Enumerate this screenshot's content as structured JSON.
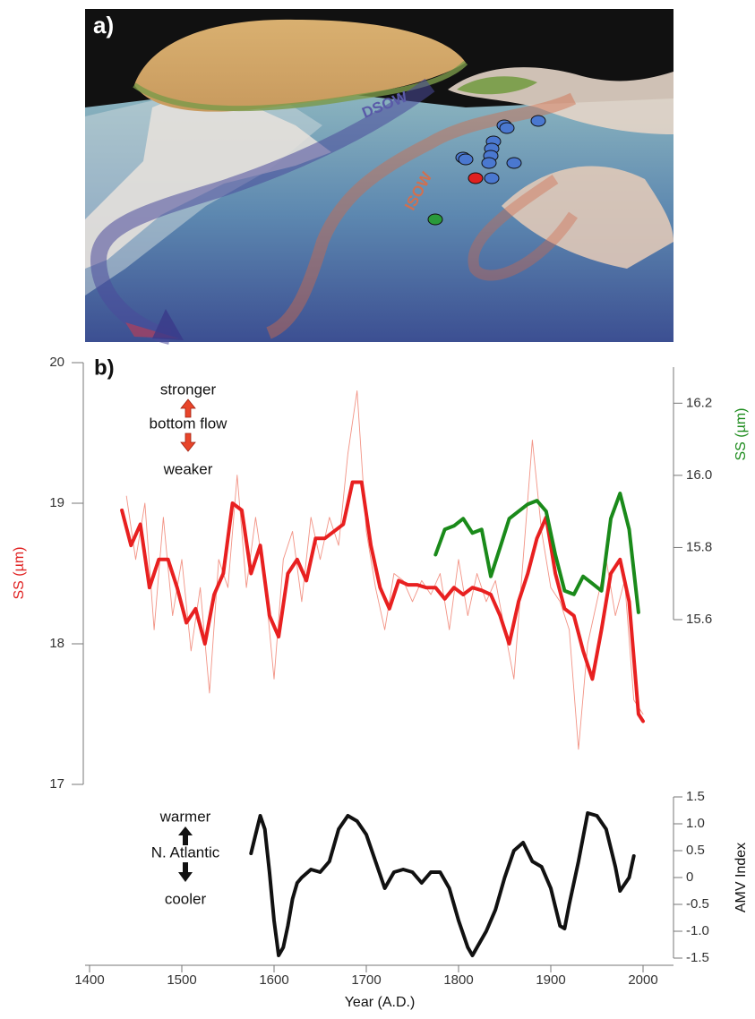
{
  "panel_a": {
    "label": "a)",
    "annotations": [
      "DSOW",
      "ISOW"
    ]
  },
  "chart_data": {
    "type": "line",
    "label": "b)",
    "annotations": [
      "stronger",
      "bottom flow",
      "weaker",
      "warmer",
      "N. Atlantic",
      "cooler"
    ],
    "xlabel": "Year (A.D.)",
    "ylabel": "SS (µm)",
    "y2label": "SS (µm)",
    "y3label": "AMV Index",
    "xlim": [
      1400,
      2000
    ],
    "xticks": [
      1400,
      1500,
      1600,
      1700,
      1800,
      1900,
      2000
    ],
    "ylim": [
      17,
      20
    ],
    "yticks": [
      17,
      18,
      19,
      20
    ],
    "y2lim": [
      15.6,
      16.3
    ],
    "y2ticks": [
      15.6,
      15.8,
      {
        "value": 16,
        "label": "16.0"
      },
      16.2
    ],
    "y3lim": [
      -1.5,
      1.5
    ],
    "y3ticks": [
      -1.5,
      {
        "value": -1,
        "label": "-1.0"
      },
      -0.5,
      0,
      0.5,
      {
        "value": 1,
        "label": "1.0"
      },
      1.5
    ],
    "series": [
      {
        "color": "#f08070",
        "axis": "y",
        "style": "thin",
        "x": [
          1440,
          1450,
          1460,
          1470,
          1480,
          1490,
          1500,
          1510,
          1520,
          1530,
          1540,
          1550,
          1560,
          1570,
          1580,
          1590,
          1600,
          1610,
          1620,
          1630,
          1640,
          1650,
          1660,
          1670,
          1680,
          1690,
          1700,
          1710,
          1720,
          1730,
          1740,
          1750,
          1760,
          1770,
          1780,
          1790,
          1800,
          1810,
          1820,
          1830,
          1840,
          1850,
          1860,
          1870,
          1880,
          1890,
          1900,
          1910,
          1920,
          1930,
          1940,
          1950,
          1960,
          1970,
          1980,
          1990,
          2000
        ],
        "values": [
          19.05,
          18.6,
          19.0,
          18.1,
          18.9,
          18.2,
          18.6,
          17.95,
          18.4,
          17.65,
          18.6,
          18.4,
          19.2,
          18.4,
          18.9,
          18.45,
          17.75,
          18.6,
          18.8,
          18.3,
          18.9,
          18.6,
          18.9,
          18.7,
          19.35,
          19.8,
          18.8,
          18.4,
          18.1,
          18.5,
          18.45,
          18.3,
          18.45,
          18.35,
          18.5,
          18.1,
          18.6,
          18.2,
          18.5,
          18.3,
          18.45,
          18.1,
          17.75,
          18.6,
          19.45,
          18.8,
          18.4,
          18.3,
          18.1,
          17.25,
          18.0,
          18.3,
          18.6,
          18.2,
          18.45,
          17.6,
          17.5
        ]
      },
      {
        "color": "#e82020",
        "axis": "y",
        "style": "thick",
        "x": [
          1435,
          1445,
          1455,
          1465,
          1475,
          1485,
          1495,
          1505,
          1515,
          1525,
          1535,
          1545,
          1555,
          1565,
          1575,
          1585,
          1595,
          1605,
          1615,
          1625,
          1635,
          1645,
          1655,
          1665,
          1675,
          1685,
          1695,
          1705,
          1715,
          1725,
          1735,
          1745,
          1755,
          1765,
          1775,
          1785,
          1795,
          1805,
          1815,
          1825,
          1835,
          1845,
          1855,
          1865,
          1875,
          1885,
          1895,
          1905,
          1915,
          1925,
          1935,
          1945,
          1955,
          1965,
          1975,
          1985,
          1995,
          2000
        ],
        "values": [
          18.95,
          18.7,
          18.85,
          18.4,
          18.6,
          18.6,
          18.4,
          18.15,
          18.25,
          18.0,
          18.35,
          18.5,
          19.0,
          18.95,
          18.5,
          18.7,
          18.2,
          18.05,
          18.5,
          18.6,
          18.45,
          18.75,
          18.75,
          18.8,
          18.85,
          19.15,
          19.15,
          18.7,
          18.4,
          18.25,
          18.45,
          18.42,
          18.42,
          18.4,
          18.4,
          18.32,
          18.4,
          18.35,
          18.4,
          18.38,
          18.35,
          18.2,
          18.0,
          18.3,
          18.5,
          18.75,
          18.9,
          18.5,
          18.25,
          18.2,
          17.95,
          17.75,
          18.1,
          18.5,
          18.6,
          18.3,
          17.5,
          17.45
        ]
      },
      {
        "color": "#1a8a1a",
        "axis": "y2",
        "style": "thick",
        "x": [
          1775,
          1785,
          1795,
          1805,
          1815,
          1825,
          1835,
          1845,
          1855,
          1865,
          1875,
          1885,
          1895,
          1905,
          1915,
          1925,
          1935,
          1945,
          1955,
          1965,
          1975,
          1985,
          1995
        ],
        "values": [
          15.78,
          15.85,
          15.86,
          15.88,
          15.84,
          15.85,
          15.72,
          15.8,
          15.88,
          15.9,
          15.92,
          15.93,
          15.9,
          15.78,
          15.68,
          15.67,
          15.72,
          15.7,
          15.68,
          15.88,
          15.95,
          15.85,
          15.62
        ]
      },
      {
        "color": "#111111",
        "axis": "y3",
        "style": "thick",
        "x": [
          1575,
          1580,
          1585,
          1590,
          1595,
          1600,
          1605,
          1610,
          1615,
          1620,
          1625,
          1630,
          1640,
          1650,
          1660,
          1670,
          1680,
          1690,
          1700,
          1710,
          1720,
          1730,
          1740,
          1750,
          1760,
          1770,
          1780,
          1790,
          1800,
          1810,
          1815,
          1820,
          1830,
          1840,
          1850,
          1860,
          1870,
          1880,
          1890,
          1900,
          1910,
          1915,
          1920,
          1930,
          1940,
          1950,
          1960,
          1970,
          1975,
          1985,
          1990
        ],
        "values": [
          0.45,
          0.8,
          1.15,
          0.9,
          0.1,
          -0.8,
          -1.45,
          -1.3,
          -0.9,
          -0.4,
          -0.1,
          0.0,
          0.15,
          0.1,
          0.3,
          0.9,
          1.15,
          1.05,
          0.8,
          0.3,
          -0.2,
          0.1,
          0.15,
          0.1,
          -0.1,
          0.1,
          0.1,
          -0.2,
          -0.8,
          -1.3,
          -1.45,
          -1.3,
          -1.0,
          -0.6,
          0.0,
          0.5,
          0.65,
          0.3,
          0.2,
          -0.2,
          -0.9,
          -0.95,
          -0.5,
          0.3,
          1.2,
          1.15,
          0.9,
          0.2,
          -0.25,
          0.0,
          0.4
        ]
      }
    ]
  }
}
